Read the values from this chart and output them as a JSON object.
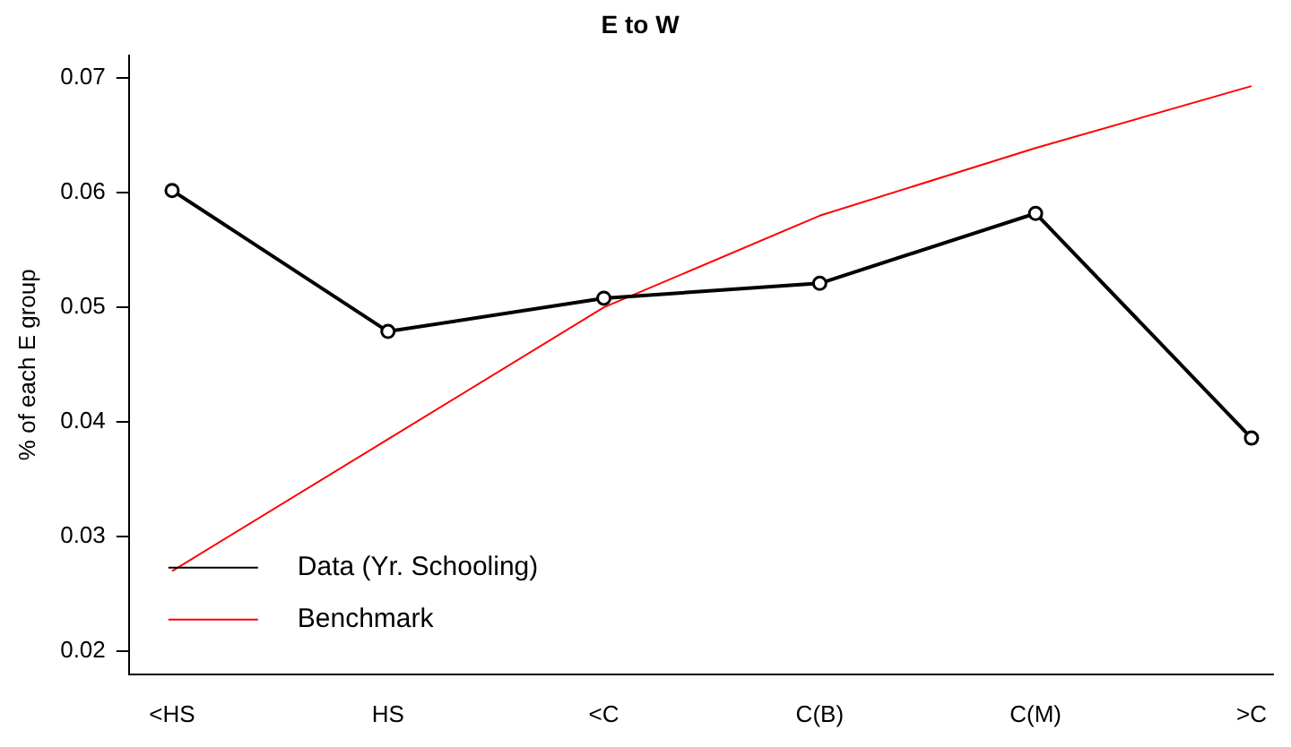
{
  "chart_data": {
    "type": "line",
    "title": "E to W",
    "ylabel": "% of each E group",
    "categories": [
      "<HS",
      "HS",
      "<C",
      "C(B)",
      "C(M)",
      ">C"
    ],
    "ylim": [
      0.018,
      0.072
    ],
    "yticks": [
      0.02,
      0.03,
      0.04,
      0.05,
      0.06,
      0.07
    ],
    "series": [
      {
        "name": "Data (Yr. Schooling)",
        "color": "#000000",
        "values": [
          0.0602,
          0.0479,
          0.0508,
          0.0521,
          0.0582,
          0.0386
        ],
        "marker": "circle"
      },
      {
        "name": "Benchmark",
        "color": "#ff0000",
        "values": [
          0.027,
          0.0385,
          0.05,
          0.058,
          0.0639,
          0.0693
        ],
        "marker": "none"
      }
    ],
    "legend": "bottom left",
    "grid": false,
    "line_style": "solid"
  }
}
